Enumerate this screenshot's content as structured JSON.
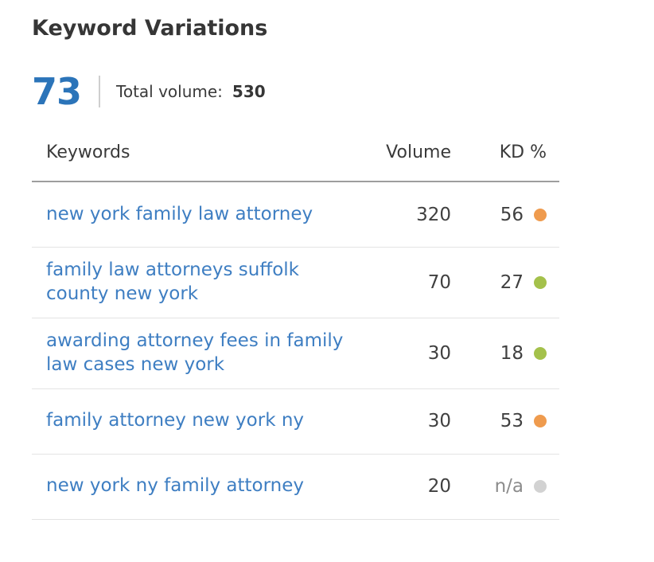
{
  "widget": {
    "title": "Keyword Variations",
    "count": "73",
    "total_volume_label": "Total volume:",
    "total_volume_value": "530",
    "accent_color": "#2b74b9",
    "link_color": "#3e7ec2"
  },
  "table": {
    "columns": [
      "Keywords",
      "Volume",
      "KD %"
    ],
    "rows": [
      {
        "keyword": "new york family law attorney",
        "volume": "320",
        "kd": "56",
        "kd_color": "#ef9b4e",
        "kd_level": "hard"
      },
      {
        "keyword": "family law attorneys suffolk county new york",
        "volume": "70",
        "kd": "27",
        "kd_color": "#a4c14b",
        "kd_level": "easy"
      },
      {
        "keyword": "awarding attorney fees in family law cases new york",
        "volume": "30",
        "kd": "18",
        "kd_color": "#a4c14b",
        "kd_level": "easy"
      },
      {
        "keyword": "family attorney new york ny",
        "volume": "30",
        "kd": "53",
        "kd_color": "#ef9b4e",
        "kd_level": "hard"
      },
      {
        "keyword": "new york ny family attorney",
        "volume": "20",
        "kd": "n/a",
        "kd_color": "#d2d2d2",
        "kd_level": "unknown"
      }
    ]
  }
}
